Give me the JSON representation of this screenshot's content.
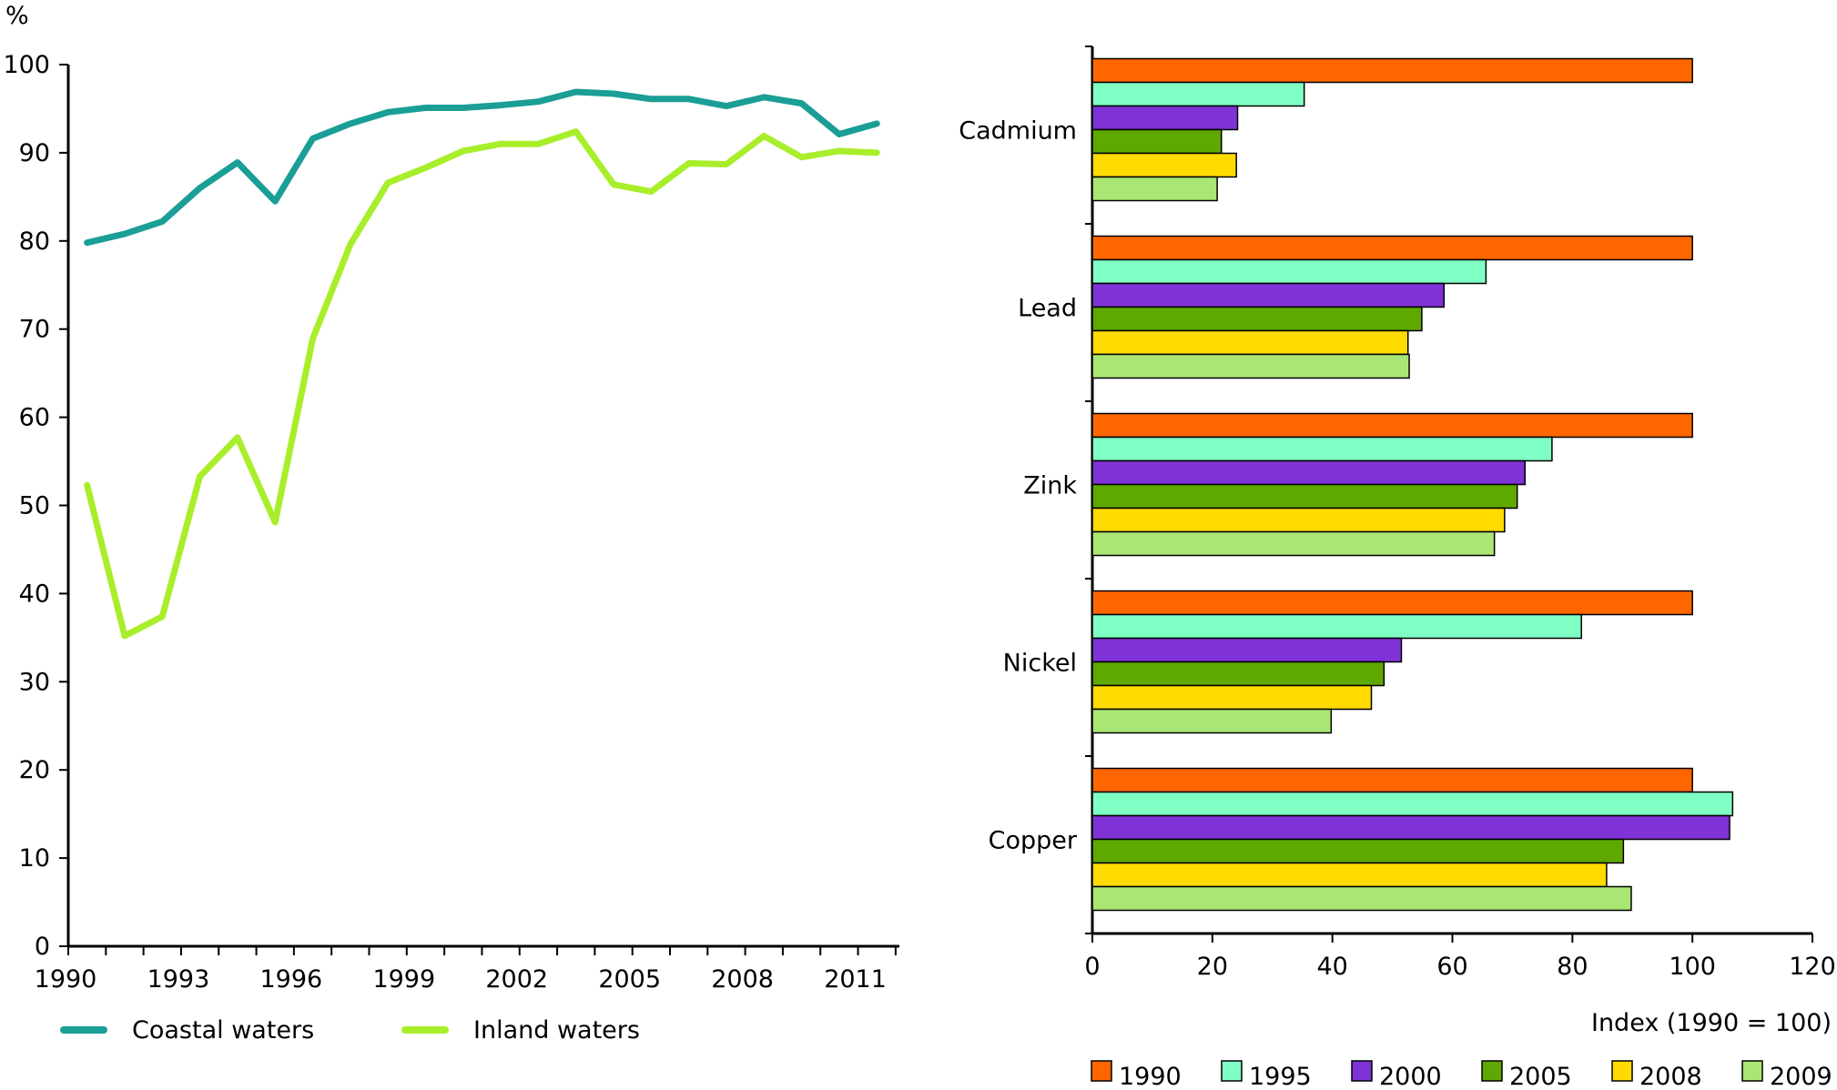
{
  "chart_data": [
    {
      "type": "line",
      "ylabel": "%",
      "ylim": [
        0,
        100
      ],
      "yticks": [
        0,
        10,
        20,
        30,
        40,
        50,
        60,
        70,
        80,
        90,
        100
      ],
      "x": [
        1990,
        1991,
        1992,
        1993,
        1994,
        1995,
        1996,
        1997,
        1998,
        1999,
        2000,
        2001,
        2002,
        2003,
        2004,
        2005,
        2006,
        2007,
        2008,
        2009,
        2010,
        2011
      ],
      "xtick_labels": [
        "1990",
        "1993",
        "1996",
        "1999",
        "2002",
        "2005",
        "2008",
        "2011"
      ],
      "grid": false,
      "legend_position": "bottom",
      "series": [
        {
          "name": "Coastal waters",
          "color": "#1a9e96",
          "values": [
            79.8,
            80.8,
            82.2,
            86.0,
            88.9,
            84.5,
            91.6,
            93.3,
            94.6,
            95.1,
            95.1,
            95.4,
            95.8,
            96.9,
            96.7,
            96.1,
            96.1,
            95.3,
            96.3,
            95.6,
            92.1,
            93.3
          ]
        },
        {
          "name": "Inland waters",
          "color": "#a8ee2a",
          "values": [
            52.3,
            35.2,
            37.4,
            53.3,
            57.7,
            48.1,
            68.9,
            79.6,
            86.6,
            88.3,
            90.2,
            91.0,
            91.0,
            92.4,
            86.4,
            85.6,
            88.8,
            88.7,
            91.9,
            89.5,
            90.2,
            90.0
          ]
        }
      ]
    },
    {
      "type": "bar",
      "orientation": "horizontal",
      "xlabel": "Index (1990 = 100)",
      "xlim": [
        0,
        120
      ],
      "xticks": [
        0,
        20,
        40,
        60,
        80,
        100,
        120
      ],
      "categories": [
        "Cadmium",
        "Lead",
        "Zink",
        "Nickel",
        "Copper"
      ],
      "grid": false,
      "legend_position": "bottom",
      "series": [
        {
          "name": "1990",
          "color": "#ff6600",
          "values": [
            100,
            100,
            100,
            100,
            100
          ]
        },
        {
          "name": "1995",
          "color": "#7fffc4",
          "values": [
            35.3,
            65.6,
            76.6,
            81.5,
            106.7
          ]
        },
        {
          "name": "2000",
          "color": "#7f33d6",
          "values": [
            24.2,
            58.6,
            72.1,
            51.5,
            106.2
          ]
        },
        {
          "name": "2005",
          "color": "#5fa800",
          "values": [
            21.5,
            54.9,
            70.8,
            48.6,
            88.5
          ]
        },
        {
          "name": "2008",
          "color": "#ffdb00",
          "values": [
            24.0,
            52.6,
            68.7,
            46.5,
            85.7
          ]
        },
        {
          "name": "2009",
          "color": "#aae673",
          "values": [
            20.8,
            52.8,
            67.0,
            39.8,
            89.8
          ]
        }
      ]
    }
  ]
}
